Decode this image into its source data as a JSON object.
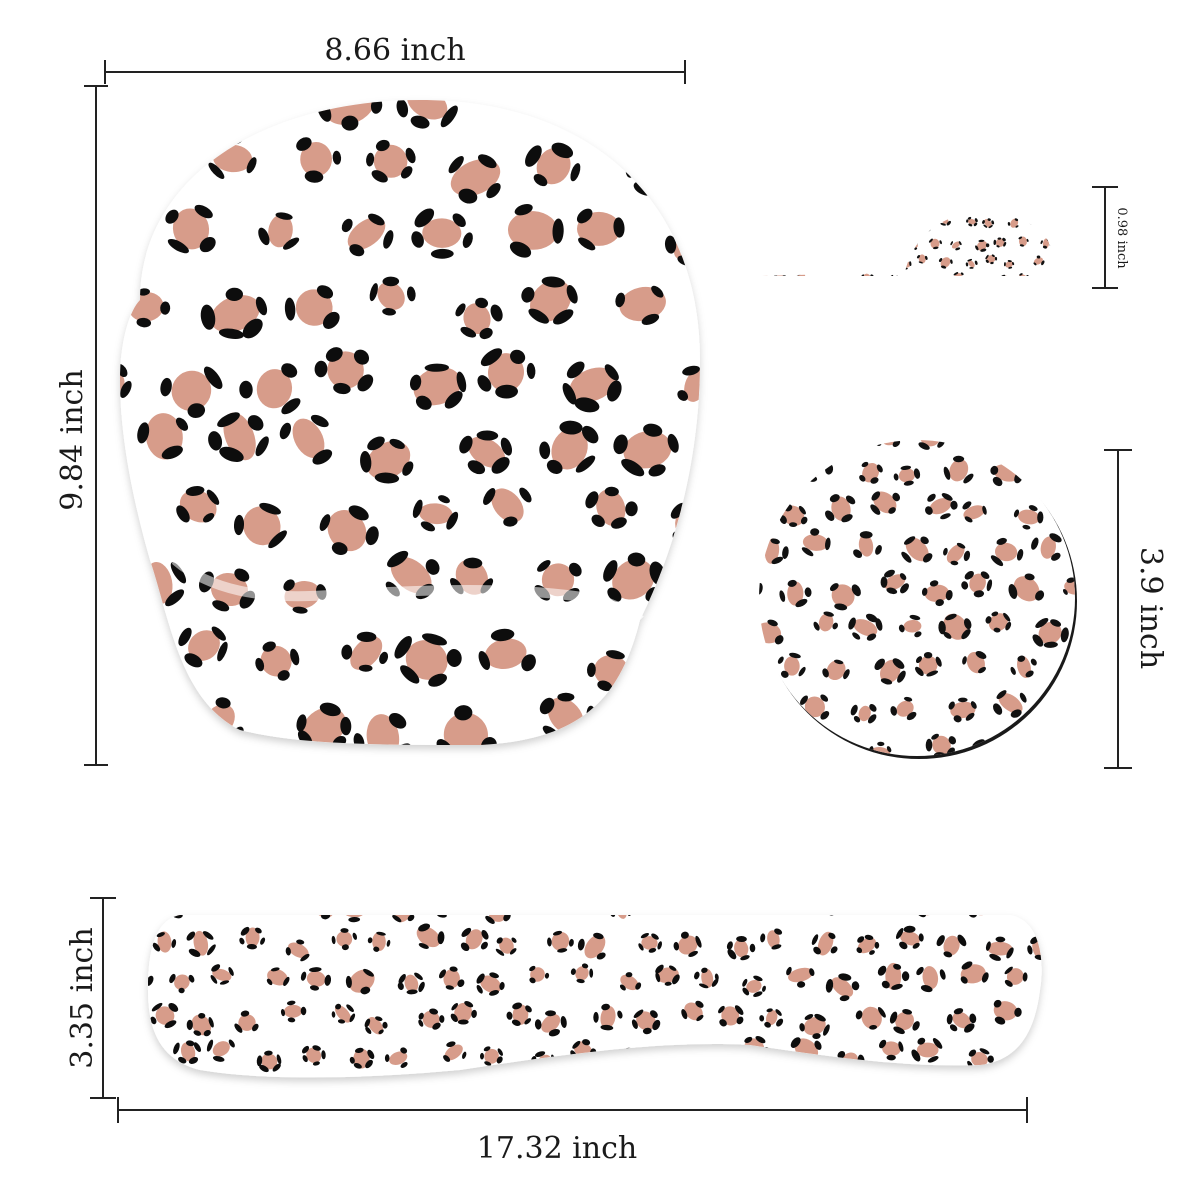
{
  "dimensions": {
    "mouse_pad_width": "8.66 inch",
    "mouse_pad_height": "9.84 inch",
    "wrist_rest_thickness": "0.98 inch",
    "coaster_diameter": "3.9 inch",
    "keyboard_rest_height": "3.35 inch",
    "keyboard_rest_width": "17.32 inch"
  },
  "pattern": {
    "name": "leopard-print",
    "colors": {
      "background": "#ffffff",
      "spot_fill": "#d79c8a",
      "spot_outline": "#111111",
      "measure_line": "#222222"
    }
  }
}
